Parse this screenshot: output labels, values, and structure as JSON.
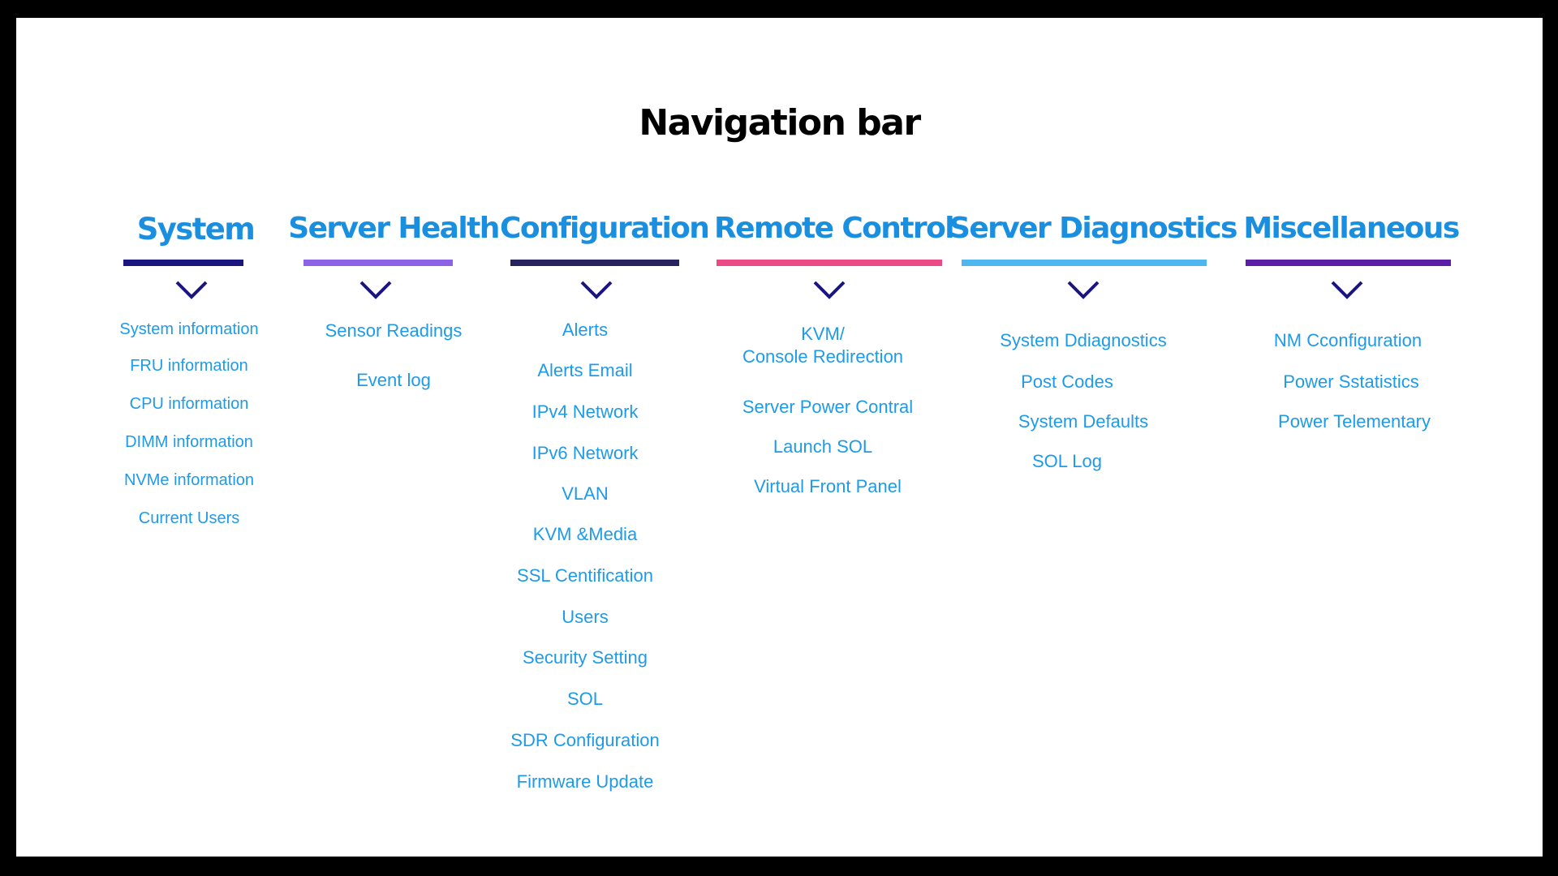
{
  "title": "Navigation bar",
  "colors": {
    "heading": "#1a8fe0",
    "item": "#1e9be8",
    "chevron": "#1b1580"
  },
  "columns": [
    {
      "heading": "System",
      "bar_color": "#1b1580",
      "items": [
        "System information",
        "FRU information",
        "CPU information",
        "DIMM information",
        "NVMe information",
        "Current Users"
      ]
    },
    {
      "heading": "Server Health",
      "bar_color": "#8c63e6",
      "items": [
        "Sensor Readings",
        "Event log"
      ]
    },
    {
      "heading": "Configuration",
      "bar_color": "#26235e",
      "items": [
        "Alerts",
        "Alerts Email",
        "IPv4 Network",
        "IPv6 Network",
        "VLAN",
        "KVM &Media",
        "SSL Centification",
        "Users",
        "Security Setting",
        "SOL",
        "SDR Configuration",
        "Firmware Update"
      ]
    },
    {
      "heading": "Remote Control",
      "bar_color": "#ec4a86",
      "items": [
        "KVM/",
        "Console Redirection",
        "Server Power Contral",
        "Launch SOL",
        "Virtual Front Panel"
      ]
    },
    {
      "heading": "Server Diagnostics",
      "bar_color": "#4fb7f0",
      "items": [
        "System Ddiagnostics",
        "Post Codes",
        "System Defaults",
        "SOL Log"
      ]
    },
    {
      "heading": "Miscellaneous",
      "bar_color": "#5c1ea6",
      "items": [
        "NM Cconfiguration",
        "Power Sstatistics",
        "Power Telementary"
      ]
    }
  ]
}
